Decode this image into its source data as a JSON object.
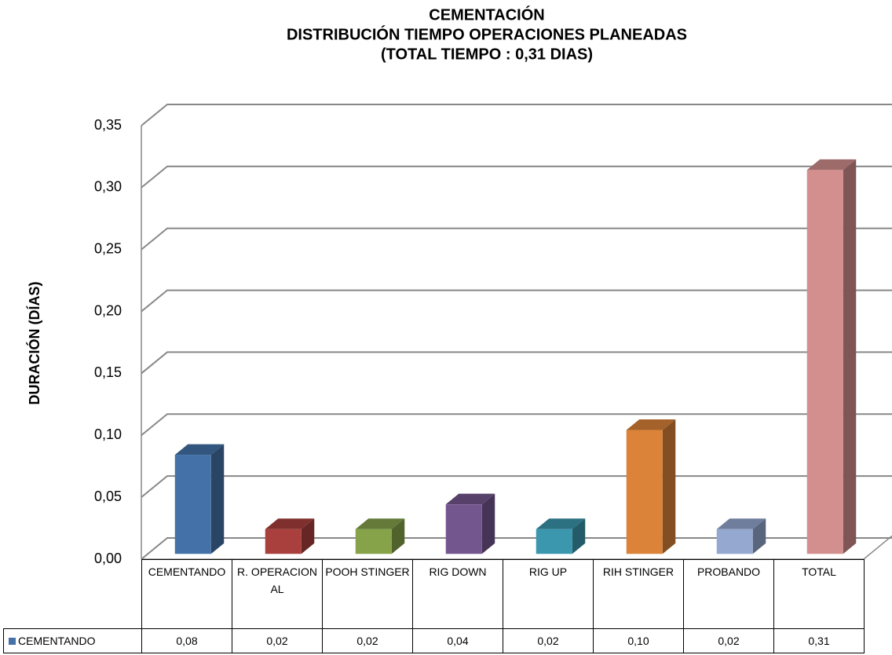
{
  "chart_data": {
    "type": "bar3d",
    "title": [
      "CEMENTACIÓN",
      "DISTRIBUCIÓN TIEMPO OPERACIONES PLANEADAS",
      "(TOTAL TIEMPO : 0,31 DIAS)"
    ],
    "y_label": "DURACIÓN (DÍAS)",
    "categories": [
      "CEMENTANDO",
      "R. OPERACIONAL",
      "POOH STINGER",
      "RIG DOWN",
      "RIG UP",
      "RIH STINGER",
      "PROBANDO",
      "TOTAL"
    ],
    "series": [
      {
        "name": "CEMENTANDO",
        "color": "#4472a8",
        "colors": [
          "#4472a8",
          "#a9403d",
          "#87a34a",
          "#74568f",
          "#3b97ad",
          "#db8338",
          "#94a8d0",
          "#d38e8e"
        ],
        "values": [
          0.08,
          0.02,
          0.02,
          0.04,
          0.02,
          0.1,
          0.02,
          0.31
        ],
        "value_labels": [
          "0,08",
          "0,02",
          "0,02",
          "0,04",
          "0,02",
          "0,10",
          "0,02",
          "0,31"
        ]
      }
    ],
    "ylim": [
      0,
      0.35
    ],
    "yticks": [
      {
        "value": 0,
        "label": "0,00"
      },
      {
        "value": 0.05,
        "label": "0,05"
      },
      {
        "value": 0.1,
        "label": "0,10"
      },
      {
        "value": 0.15,
        "label": "0,15"
      },
      {
        "value": 0.2,
        "label": "0,20"
      },
      {
        "value": 0.25,
        "label": "0,25"
      },
      {
        "value": 0.3,
        "label": "0,30"
      },
      {
        "value": 0.35,
        "label": "0,35"
      }
    ],
    "grid": true,
    "data_table": true
  }
}
